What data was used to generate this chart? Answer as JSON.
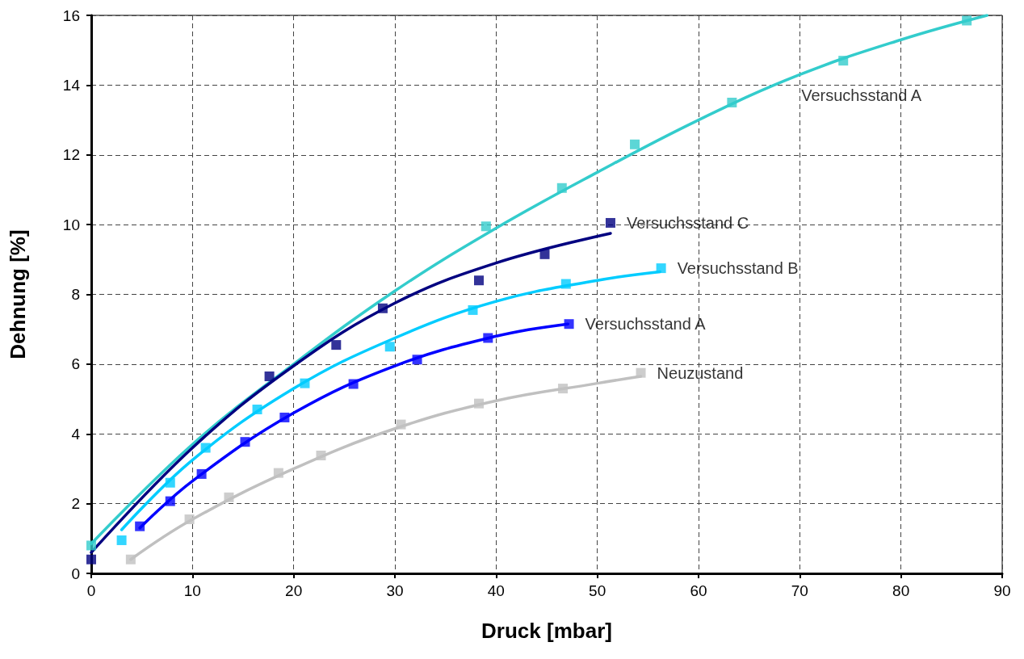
{
  "chart_data": {
    "type": "line",
    "xlabel": "Druck [mbar]",
    "ylabel": "Dehnung [%]",
    "xlim": [
      0,
      90
    ],
    "xticks": [
      0,
      10,
      20,
      30,
      40,
      50,
      60,
      70,
      80,
      90
    ],
    "ylim": [
      0,
      16
    ],
    "yticks": [
      0,
      2,
      4,
      6,
      8,
      10,
      12,
      14,
      16
    ],
    "grid": true,
    "series": [
      {
        "color": "#33cccc",
        "marker": "none",
        "x": [
          0,
          10,
          20,
          30,
          40,
          50,
          60,
          70,
          80,
          88.5
        ],
        "values": [
          0.85,
          3.7,
          6.0,
          8.1,
          9.9,
          11.5,
          13.0,
          14.3,
          15.3,
          16.0
        ]
      },
      {
        "color": "#000080",
        "marker": "none",
        "x": [
          0,
          10,
          20,
          30,
          40,
          51.3
        ],
        "values": [
          0.6,
          3.6,
          5.95,
          7.75,
          8.9,
          9.75
        ]
      },
      {
        "color": "#00ccff",
        "marker": "none",
        "x": [
          3.0,
          10,
          20,
          30,
          40,
          50,
          56.2
        ],
        "values": [
          1.25,
          3.25,
          5.3,
          6.75,
          7.8,
          8.4,
          8.65
        ]
      },
      {
        "color": "#0000ff",
        "marker": "none",
        "x": [
          4.8,
          10,
          20,
          30,
          40,
          47.1
        ],
        "values": [
          1.3,
          2.65,
          4.6,
          5.95,
          6.8,
          7.15
        ]
      },
      {
        "color": "#c0c0c0",
        "marker": "none",
        "x": [
          3.9,
          10,
          20,
          30,
          40,
          50,
          54.3
        ],
        "values": [
          0.4,
          1.55,
          3.0,
          4.15,
          4.95,
          5.45,
          5.65
        ]
      },
      {
        "type": "scatter",
        "name": "Versuchsstand A",
        "marker": "square",
        "color": "#33cccc",
        "x": [
          0,
          39.0,
          46.5,
          53.7,
          63.3,
          74.3,
          86.5
        ],
        "values": [
          0.8,
          9.95,
          11.05,
          12.3,
          13.5,
          14.7,
          15.85
        ]
      },
      {
        "type": "scatter",
        "name": "Versuchsstand C",
        "marker": "square",
        "color": "#000080",
        "x": [
          0,
          17.6,
          24.2,
          28.8,
          38.3,
          44.8,
          51.3
        ],
        "values": [
          0.4,
          5.65,
          6.55,
          7.6,
          8.4,
          9.15,
          10.05
        ]
      },
      {
        "type": "scatter",
        "name": "Versuchsstand B",
        "marker": "square",
        "color": "#00ccff",
        "x": [
          3.0,
          7.8,
          11.3,
          16.4,
          21.1,
          29.5,
          37.7,
          46.9,
          56.3
        ],
        "values": [
          0.95,
          2.6,
          3.6,
          4.7,
          5.45,
          6.5,
          7.55,
          8.3,
          8.75
        ]
      },
      {
        "type": "scatter",
        "name": "Versuchsstand A",
        "marker": "square",
        "color": "#0000ff",
        "x": [
          4.8,
          7.8,
          10.9,
          15.2,
          19.1,
          25.9,
          32.2,
          39.2,
          47.2
        ],
        "values": [
          1.35,
          2.07,
          2.85,
          3.77,
          4.47,
          5.43,
          6.13,
          6.75,
          7.15
        ]
      },
      {
        "type": "scatter",
        "name": "Neuzustand",
        "marker": "square",
        "color": "#c0c0c0",
        "x": [
          3.9,
          9.7,
          13.6,
          18.5,
          22.7,
          30.6,
          38.3,
          46.6,
          54.3
        ],
        "values": [
          0.4,
          1.55,
          2.18,
          2.88,
          3.38,
          4.27,
          4.87,
          5.3,
          5.75
        ]
      }
    ]
  }
}
